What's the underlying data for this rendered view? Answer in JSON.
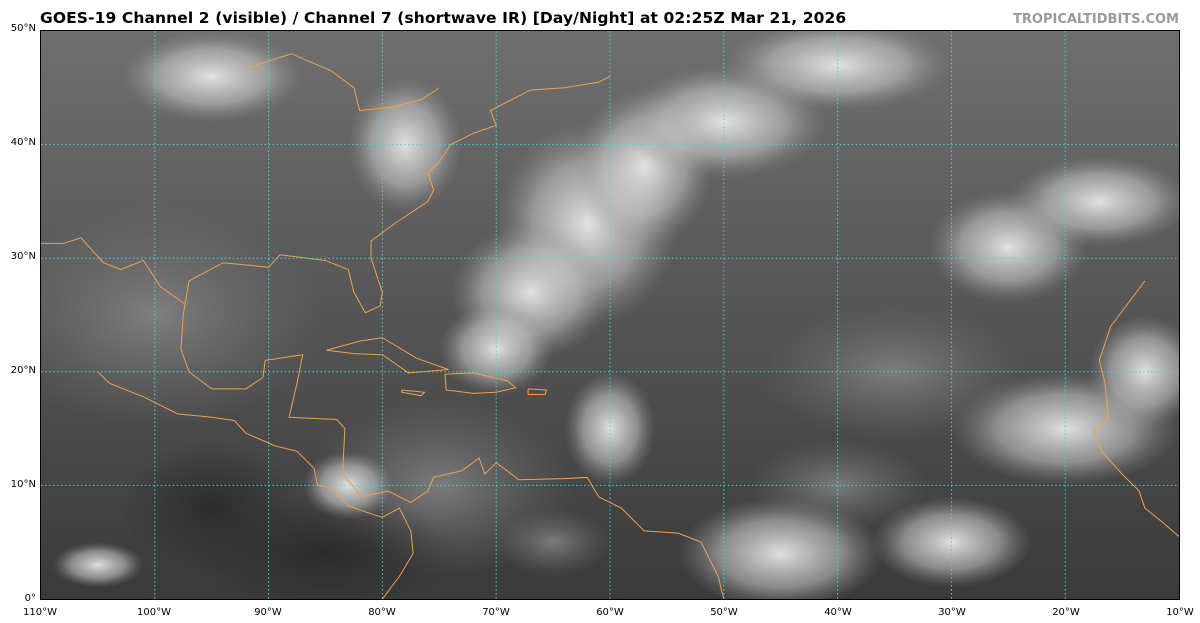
{
  "title": "GOES-19 Channel 2 (visible) / Channel 7 (shortwave IR) [Day/Night] at 02:25Z Mar 21, 2026",
  "brand": "TROPICALTIDBITS.COM",
  "map": {
    "projection": "equirectangular",
    "lon_range": [
      -110,
      -10
    ],
    "lat_range": [
      0,
      50
    ],
    "imagery": "grayscale satellite",
    "coastline_color": "#f0a050",
    "grid_color": "#40d8d8",
    "grid_style": "dotted",
    "lon_ticks": [
      {
        "value": -110,
        "label": "110°W"
      },
      {
        "value": -100,
        "label": "100°W"
      },
      {
        "value": -90,
        "label": "90°W"
      },
      {
        "value": -80,
        "label": "80°W"
      },
      {
        "value": -70,
        "label": "70°W"
      },
      {
        "value": -60,
        "label": "60°W"
      },
      {
        "value": -50,
        "label": "50°W"
      },
      {
        "value": -40,
        "label": "40°W"
      },
      {
        "value": -30,
        "label": "30°W"
      },
      {
        "value": -20,
        "label": "20°W"
      },
      {
        "value": -10,
        "label": "10°W"
      }
    ],
    "lat_ticks": [
      {
        "value": 0,
        "label": "0°"
      },
      {
        "value": 10,
        "label": "10°N"
      },
      {
        "value": 20,
        "label": "20°N"
      },
      {
        "value": 30,
        "label": "30°N"
      },
      {
        "value": 40,
        "label": "40°N"
      },
      {
        "value": 50,
        "label": "50°N"
      }
    ]
  }
}
